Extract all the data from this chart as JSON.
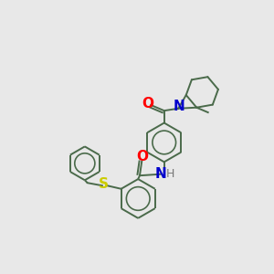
{
  "background_color": "#e8e8e8",
  "bond_color": "#4a6a4a",
  "atom_colors": {
    "O": "#ff0000",
    "N": "#0000cc",
    "S": "#cccc00",
    "H": "#777777",
    "C": "#4a6a4a"
  },
  "bond_width": 1.4,
  "font_size": 9,
  "figsize": [
    3.0,
    3.0
  ],
  "dpi": 100
}
